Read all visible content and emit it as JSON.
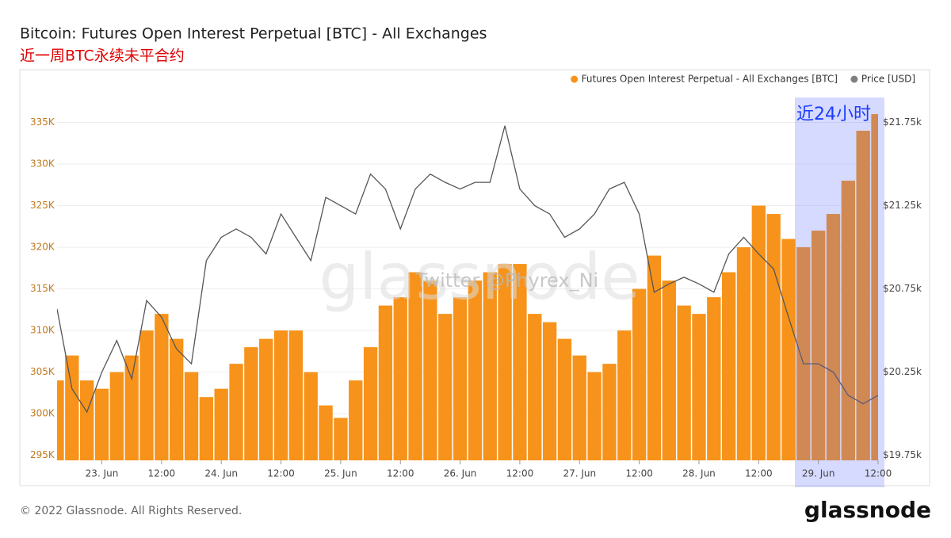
{
  "chart_data": {
    "type": "bar",
    "title": "Bitcoin: Futures Open Interest Perpetual [BTC] - All Exchanges",
    "subtitle": "近一周BTC永续未平合约",
    "annotation": "近24小时",
    "watermark": "glassnode",
    "watermark_credit": "Twitter @Phyrex_Ni",
    "footer": "© 2022 Glassnode. All Rights Reserved.",
    "logo": "glassnode",
    "legend_position": "top-right",
    "grid": true,
    "categories": [
      null,
      null,
      null,
      "23. Jun",
      null,
      null,
      null,
      "12:00",
      null,
      null,
      null,
      "24. Jun",
      null,
      null,
      null,
      "12:00",
      null,
      null,
      null,
      "25. Jun",
      null,
      null,
      null,
      "12:00",
      null,
      null,
      null,
      "26. Jun",
      null,
      null,
      null,
      "12:00",
      null,
      null,
      null,
      "27. Jun",
      null,
      null,
      null,
      "12:00",
      null,
      null,
      null,
      "28. Jun",
      null,
      null,
      null,
      "12:00",
      null,
      null,
      null,
      "29. Jun",
      null,
      null,
      null,
      "12:00"
    ],
    "series": [
      {
        "name": "Futures Open Interest Perpetual - All Exchanges [BTC]",
        "color": "#f7931a",
        "type": "bar",
        "values": [
          304000,
          307000,
          304000,
          303000,
          305000,
          307000,
          310000,
          312000,
          309000,
          305000,
          302000,
          303000,
          306000,
          308000,
          309000,
          310000,
          310000,
          305000,
          301000,
          299500,
          304000,
          308000,
          313000,
          314000,
          317000,
          316000,
          312000,
          314000,
          316000,
          317000,
          318000,
          318000,
          312000,
          311000,
          309000,
          307000,
          305000,
          306000,
          310000,
          315000,
          319000,
          316000,
          313000,
          312000,
          314000,
          317000,
          320000,
          325000,
          324000,
          321000,
          320000,
          322000,
          324000,
          328000,
          334000,
          336000
        ]
      },
      {
        "name": "Price [USD]",
        "color": "#808080",
        "type": "line",
        "axis": "y2",
        "values": [
          20630,
          20150,
          20010,
          20250,
          20440,
          20210,
          20680,
          20580,
          20390,
          20300,
          20920,
          21060,
          21110,
          21060,
          20960,
          21200,
          21060,
          20920,
          21300,
          21250,
          21200,
          21440,
          21350,
          21110,
          21350,
          21440,
          21390,
          21350,
          21390,
          21390,
          21730,
          21350,
          21250,
          21200,
          21060,
          21110,
          21200,
          21350,
          21390,
          21200,
          20730,
          20780,
          20820,
          20780,
          20730,
          20960,
          21060,
          20960,
          20870,
          20580,
          20300,
          20300,
          20250,
          20110,
          20060,
          20110
        ]
      }
    ],
    "ylim": [
      294400,
      338000
    ],
    "yticks": [
      {
        "value": 295000,
        "label": "295K"
      },
      {
        "value": 300000,
        "label": "300K"
      },
      {
        "value": 305000,
        "label": "305K"
      },
      {
        "value": 310000,
        "label": "310K"
      },
      {
        "value": 315000,
        "label": "315K"
      },
      {
        "value": 320000,
        "label": "320K"
      },
      {
        "value": 325000,
        "label": "325K"
      },
      {
        "value": 330000,
        "label": "330K"
      },
      {
        "value": 335000,
        "label": "335K"
      }
    ],
    "y2lim": [
      19720,
      21900
    ],
    "y2ticks": [
      {
        "value": 19750,
        "label": "$19.75k"
      },
      {
        "value": 20250,
        "label": "$20.25k"
      },
      {
        "value": 20750,
        "label": "$20.75k"
      },
      {
        "value": 21250,
        "label": "$21.25k"
      },
      {
        "value": 21750,
        "label": "$21.75k"
      }
    ]
  }
}
